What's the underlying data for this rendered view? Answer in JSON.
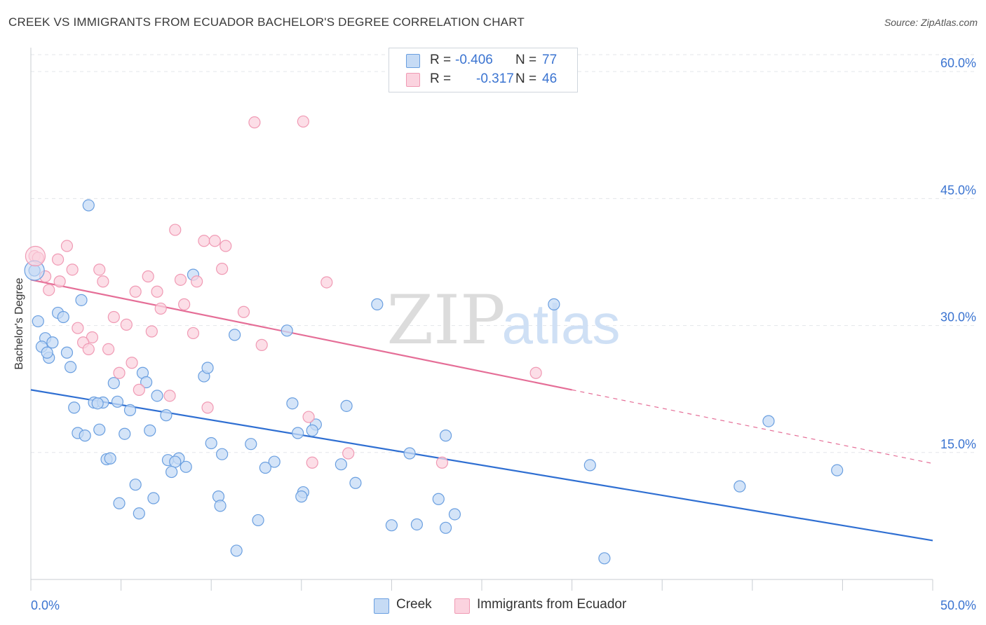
{
  "header": {
    "title": "CREEK VS IMMIGRANTS FROM ECUADOR BACHELOR'S DEGREE CORRELATION CHART",
    "source": "Source: ZipAtlas.com"
  },
  "watermark": {
    "zip": "ZIP",
    "atlas": "atlas"
  },
  "legend": {
    "rows": [
      {
        "r_label": "R =",
        "r_value": "-0.406",
        "n_label": "N =",
        "n_value": "77",
        "color": "#a9c8f0"
      },
      {
        "r_label": "R =",
        "r_value": "-0.317",
        "n_label": "N =",
        "n_value": "46",
        "color": "#f7b8cc"
      }
    ]
  },
  "bottom_legend": {
    "items": [
      {
        "label": "Creek",
        "color": "#a9c8f0"
      },
      {
        "label": "Immigrants from Ecuador",
        "color": "#f7b8cc"
      }
    ]
  },
  "chart_data": {
    "type": "scatter",
    "title": "CREEK VS IMMIGRANTS FROM ECUADOR BACHELOR'S DEGREE CORRELATION CHART",
    "xlabel": "",
    "ylabel": "Bachelor's Degree",
    "xlim": [
      0,
      50
    ],
    "ylim": [
      0,
      62
    ],
    "x_tick_labels": [
      "0.0%",
      "50.0%"
    ],
    "y_ticks": [
      15,
      30,
      45,
      60
    ],
    "y_tick_labels": [
      "15.0%",
      "30.0%",
      "45.0%",
      "60.0%"
    ],
    "grid": true,
    "legend_position": "top-center",
    "series": [
      {
        "name": "Creek",
        "color": "#6a9fe0",
        "fill": "#c6dbf5",
        "line_color": "#2f6fd2",
        "trend": {
          "x0": 0,
          "y0": 22.4,
          "x1": 50,
          "y1": 4.6
        },
        "points": [
          [
            0.2,
            36.5
          ],
          [
            3.2,
            44.2
          ],
          [
            2.8,
            33.0
          ],
          [
            1.5,
            31.5
          ],
          [
            0.4,
            30.5
          ],
          [
            1.8,
            31.0
          ],
          [
            0.8,
            28.5
          ],
          [
            1.2,
            28.0
          ],
          [
            0.6,
            27.5
          ],
          [
            2.0,
            26.8
          ],
          [
            1.0,
            26.2
          ],
          [
            2.2,
            25.1
          ],
          [
            6.2,
            24.4
          ],
          [
            4.6,
            23.2
          ],
          [
            6.4,
            23.3
          ],
          [
            7.0,
            21.7
          ],
          [
            3.5,
            20.9
          ],
          [
            4.8,
            21.0
          ],
          [
            2.4,
            20.3
          ],
          [
            4.0,
            20.9
          ],
          [
            5.5,
            20.0
          ],
          [
            7.5,
            19.4
          ],
          [
            2.6,
            17.3
          ],
          [
            3.0,
            17.0
          ],
          [
            3.8,
            17.7
          ],
          [
            5.2,
            17.2
          ],
          [
            6.6,
            17.6
          ],
          [
            4.2,
            14.2
          ],
          [
            4.4,
            14.3
          ],
          [
            7.6,
            14.1
          ],
          [
            8.2,
            14.3
          ],
          [
            8.0,
            13.9
          ],
          [
            8.6,
            13.3
          ],
          [
            7.8,
            12.7
          ],
          [
            5.8,
            11.2
          ],
          [
            4.9,
            9.0
          ],
          [
            6.8,
            9.6
          ],
          [
            6.0,
            7.8
          ],
          [
            9.0,
            36.0
          ],
          [
            9.6,
            24.0
          ],
          [
            9.8,
            25.0
          ],
          [
            11.3,
            28.9
          ],
          [
            14.2,
            29.4
          ],
          [
            10.0,
            16.1
          ],
          [
            10.6,
            14.8
          ],
          [
            12.2,
            16.0
          ],
          [
            13.5,
            13.9
          ],
          [
            13.0,
            13.2
          ],
          [
            10.4,
            9.8
          ],
          [
            10.5,
            8.7
          ],
          [
            11.4,
            3.4
          ],
          [
            12.6,
            7.0
          ],
          [
            14.5,
            20.8
          ],
          [
            14.8,
            17.3
          ],
          [
            15.8,
            18.3
          ],
          [
            15.6,
            17.6
          ],
          [
            15.1,
            10.3
          ],
          [
            15.0,
            9.8
          ],
          [
            17.5,
            20.5
          ],
          [
            17.2,
            13.6
          ],
          [
            18.0,
            11.4
          ],
          [
            19.2,
            32.5
          ],
          [
            21.0,
            14.9
          ],
          [
            20.0,
            6.4
          ],
          [
            21.4,
            6.5
          ],
          [
            23.0,
            17.0
          ],
          [
            23.5,
            7.7
          ],
          [
            22.6,
            9.5
          ],
          [
            23.0,
            6.1
          ],
          [
            29.0,
            32.5
          ],
          [
            31.0,
            13.5
          ],
          [
            31.8,
            2.5
          ],
          [
            39.3,
            11.0
          ],
          [
            40.9,
            18.7
          ],
          [
            44.7,
            12.9
          ],
          [
            0.9,
            26.8
          ],
          [
            3.7,
            20.8
          ]
        ]
      },
      {
        "name": "Immigrants from Ecuador",
        "color": "#f09ab4",
        "fill": "#fbd3df",
        "line_color": "#e56e97",
        "trend": {
          "x0": 0,
          "y0": 35.4,
          "x1": 30,
          "y1": 22.4
        },
        "trend_extension": {
          "x0": 30,
          "y0": 22.4,
          "x1": 50,
          "y1": 13.7
        },
        "points": [
          [
            0.2,
            38.2
          ],
          [
            0.4,
            38.0
          ],
          [
            0.8,
            35.8
          ],
          [
            1.0,
            34.2
          ],
          [
            1.6,
            35.2
          ],
          [
            2.0,
            39.4
          ],
          [
            1.5,
            37.8
          ],
          [
            2.3,
            36.6
          ],
          [
            3.8,
            36.6
          ],
          [
            4.0,
            35.2
          ],
          [
            4.6,
            31.0
          ],
          [
            5.3,
            30.1
          ],
          [
            2.6,
            29.7
          ],
          [
            3.4,
            28.6
          ],
          [
            2.9,
            28.0
          ],
          [
            3.2,
            27.2
          ],
          [
            4.3,
            27.2
          ],
          [
            5.6,
            25.6
          ],
          [
            4.9,
            24.4
          ],
          [
            6.0,
            22.4
          ],
          [
            6.5,
            35.8
          ],
          [
            5.8,
            34.0
          ],
          [
            7.0,
            34.0
          ],
          [
            7.2,
            32.0
          ],
          [
            6.7,
            29.3
          ],
          [
            7.7,
            21.7
          ],
          [
            8.0,
            41.3
          ],
          [
            8.3,
            35.4
          ],
          [
            8.5,
            32.5
          ],
          [
            9.2,
            35.2
          ],
          [
            9.0,
            29.1
          ],
          [
            9.6,
            40.0
          ],
          [
            10.2,
            40.0
          ],
          [
            10.8,
            39.4
          ],
          [
            10.6,
            36.7
          ],
          [
            11.8,
            31.6
          ],
          [
            9.8,
            20.3
          ],
          [
            12.4,
            54.0
          ],
          [
            15.1,
            54.1
          ],
          [
            12.8,
            27.7
          ],
          [
            16.4,
            35.1
          ],
          [
            15.4,
            19.2
          ],
          [
            15.6,
            13.8
          ],
          [
            17.6,
            14.9
          ],
          [
            28.0,
            24.4
          ],
          [
            22.8,
            13.8
          ]
        ]
      }
    ]
  }
}
